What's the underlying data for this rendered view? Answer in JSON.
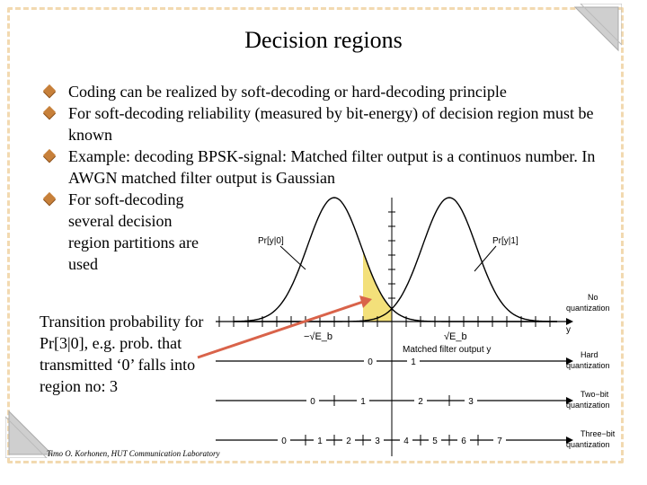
{
  "title": "Decision regions",
  "bullets": [
    "Coding can be realized by soft-decoding or hard-decoding principle",
    "For soft-decoding reliability (measured by bit-energy) of decision region must be known",
    "Example: decoding BPSK-signal: Matched filter output is a continuos number. In AWGN matched filter output is Gaussian",
    "For soft-decoding several decision region partitions are used"
  ],
  "transition_text": "Transition probability for Pr[3|0], e.g. prob. that transmitted ‘0’ falls into region no: 3",
  "footer": "Timo O. Korhonen, HUT Communication Laboratory",
  "diagram": {
    "pdf0_label": "Pr[y|0]",
    "pdf1_label": "Pr[y|1]",
    "neg_label": "−√E_b",
    "pos_label": "√E_b",
    "axis_label": "Matched filter output y",
    "y_label": "y",
    "rows": [
      {
        "name": "No quantization",
        "line1": "No",
        "line2": "quantization",
        "cells": []
      },
      {
        "name": "Hard quantization",
        "line1": "Hard",
        "line2": "quantization",
        "cells": [
          "0",
          "1"
        ]
      },
      {
        "name": "Two-bit quantization",
        "line1": "Two−bit",
        "line2": "quantization",
        "cells": [
          "0",
          "1",
          "2",
          "3"
        ]
      },
      {
        "name": "Three-bit quantization",
        "line1": "Three−bit",
        "line2": "quantization",
        "cells": [
          "0",
          "1",
          "2",
          "3",
          "4",
          "5",
          "6",
          "7"
        ]
      }
    ],
    "highlight_color": "#f3e07a",
    "arrow_color": "#d9634a",
    "bullet_color": "#c7803a"
  }
}
